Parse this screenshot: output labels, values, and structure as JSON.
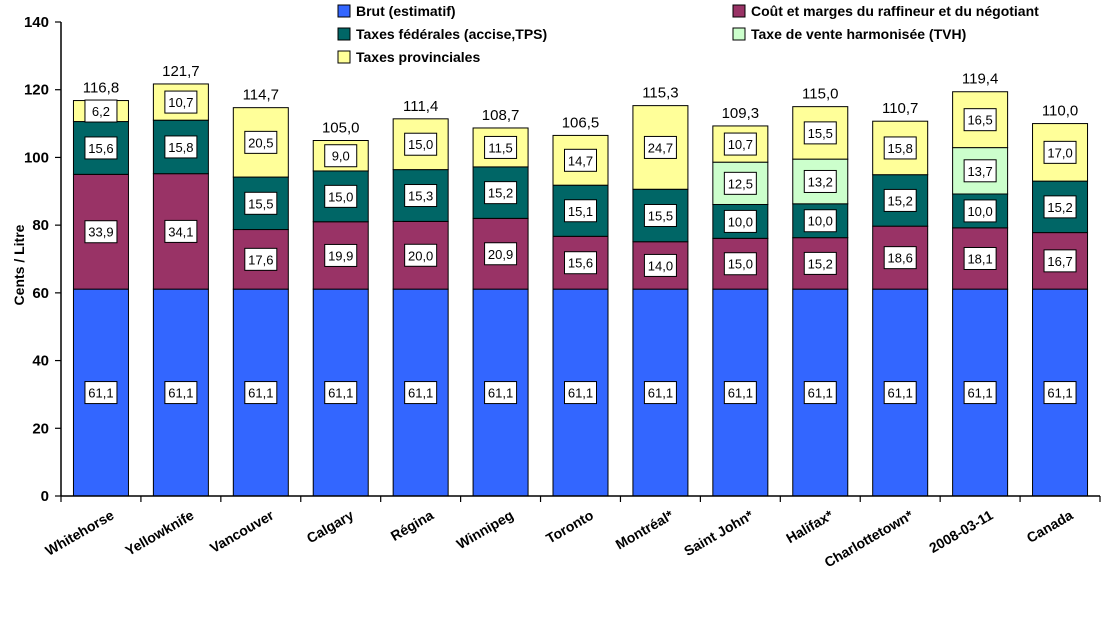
{
  "chart_data": {
    "type": "bar",
    "stacked": true,
    "title": "",
    "xlabel": "",
    "ylabel": "Cents / Litre",
    "ylim": [
      0,
      140
    ],
    "yticks": [
      0,
      20,
      40,
      60,
      80,
      100,
      120,
      140
    ],
    "grid": false,
    "legend_position": "top",
    "categories": [
      "Whitehorse",
      "Yellowknife",
      "Vancouver",
      "Calgary",
      "Régina",
      "Winnipeg",
      "Toronto",
      "Montréal*",
      "Saint John*",
      "Halifax*",
      "Charlottetown*",
      "2008-03-11",
      "Canada"
    ],
    "series": [
      {
        "name": "Brut (estimatif)",
        "color": "#3366FF",
        "values": [
          61.1,
          61.1,
          61.1,
          61.1,
          61.1,
          61.1,
          61.1,
          61.1,
          61.1,
          61.1,
          61.1,
          61.1,
          61.1
        ],
        "labels": [
          "61,1",
          "61,1",
          "61,1",
          "61,1",
          "61,1",
          "61,1",
          "61,1",
          "61,1",
          "61,1",
          "61,1",
          "61,1",
          "61,1",
          "61,1"
        ]
      },
      {
        "name": "Coût et marges du raffineur et du négotiant",
        "color": "#993366",
        "values": [
          33.9,
          34.1,
          17.6,
          19.9,
          20.0,
          20.9,
          15.6,
          14.0,
          15.0,
          15.2,
          18.6,
          18.1,
          16.7
        ],
        "labels": [
          "33,9",
          "34,1",
          "17,6",
          "19,9",
          "20,0",
          "20,9",
          "15,6",
          "14,0",
          "15,0",
          "15,2",
          "18,6",
          "18,1",
          "16,7"
        ]
      },
      {
        "name": "Taxes fédérales (accise,TPS)",
        "color": "#006666",
        "values": [
          15.6,
          15.8,
          15.5,
          15.0,
          15.3,
          15.2,
          15.1,
          15.5,
          10.0,
          10.0,
          15.2,
          10.0,
          15.2
        ],
        "labels": [
          "15,6",
          "15,8",
          "15,5",
          "15,0",
          "15,3",
          "15,2",
          "15,1",
          "15,5",
          "10,0",
          "10,0",
          "15,2",
          "10,0",
          "15,2"
        ]
      },
      {
        "name": "Taxe de vente harmonisée (TVH)",
        "color": "#CCFFCC",
        "values": [
          null,
          null,
          null,
          null,
          null,
          null,
          null,
          null,
          12.5,
          13.2,
          null,
          13.7,
          null
        ],
        "labels": [
          "",
          "",
          "",
          "",
          "",
          "",
          "",
          "",
          "12,5",
          "13,2",
          "",
          "13,7",
          ""
        ]
      },
      {
        "name": "Taxes provinciales",
        "color": "#FFFF99",
        "values": [
          6.2,
          10.7,
          20.5,
          9.0,
          15.0,
          11.5,
          14.7,
          24.7,
          10.7,
          15.5,
          15.8,
          16.5,
          17.0
        ],
        "labels": [
          "6,2",
          "10,7",
          "20,5",
          "9,0",
          "15,0",
          "11,5",
          "14,7",
          "24,7",
          "10,7",
          "15,5",
          "15,8",
          "16,5",
          "17,0"
        ]
      }
    ],
    "totals": [
      116.8,
      121.7,
      114.7,
      105.0,
      111.4,
      108.7,
      106.5,
      115.3,
      109.3,
      115.0,
      110.7,
      119.4,
      110.0
    ],
    "total_labels": [
      "116,8",
      "121,7",
      "114,7",
      "105,0",
      "111,4",
      "108,7",
      "106,5",
      "115,3",
      "109,3",
      "115,0",
      "110,7",
      "119,4",
      "110,0"
    ]
  }
}
